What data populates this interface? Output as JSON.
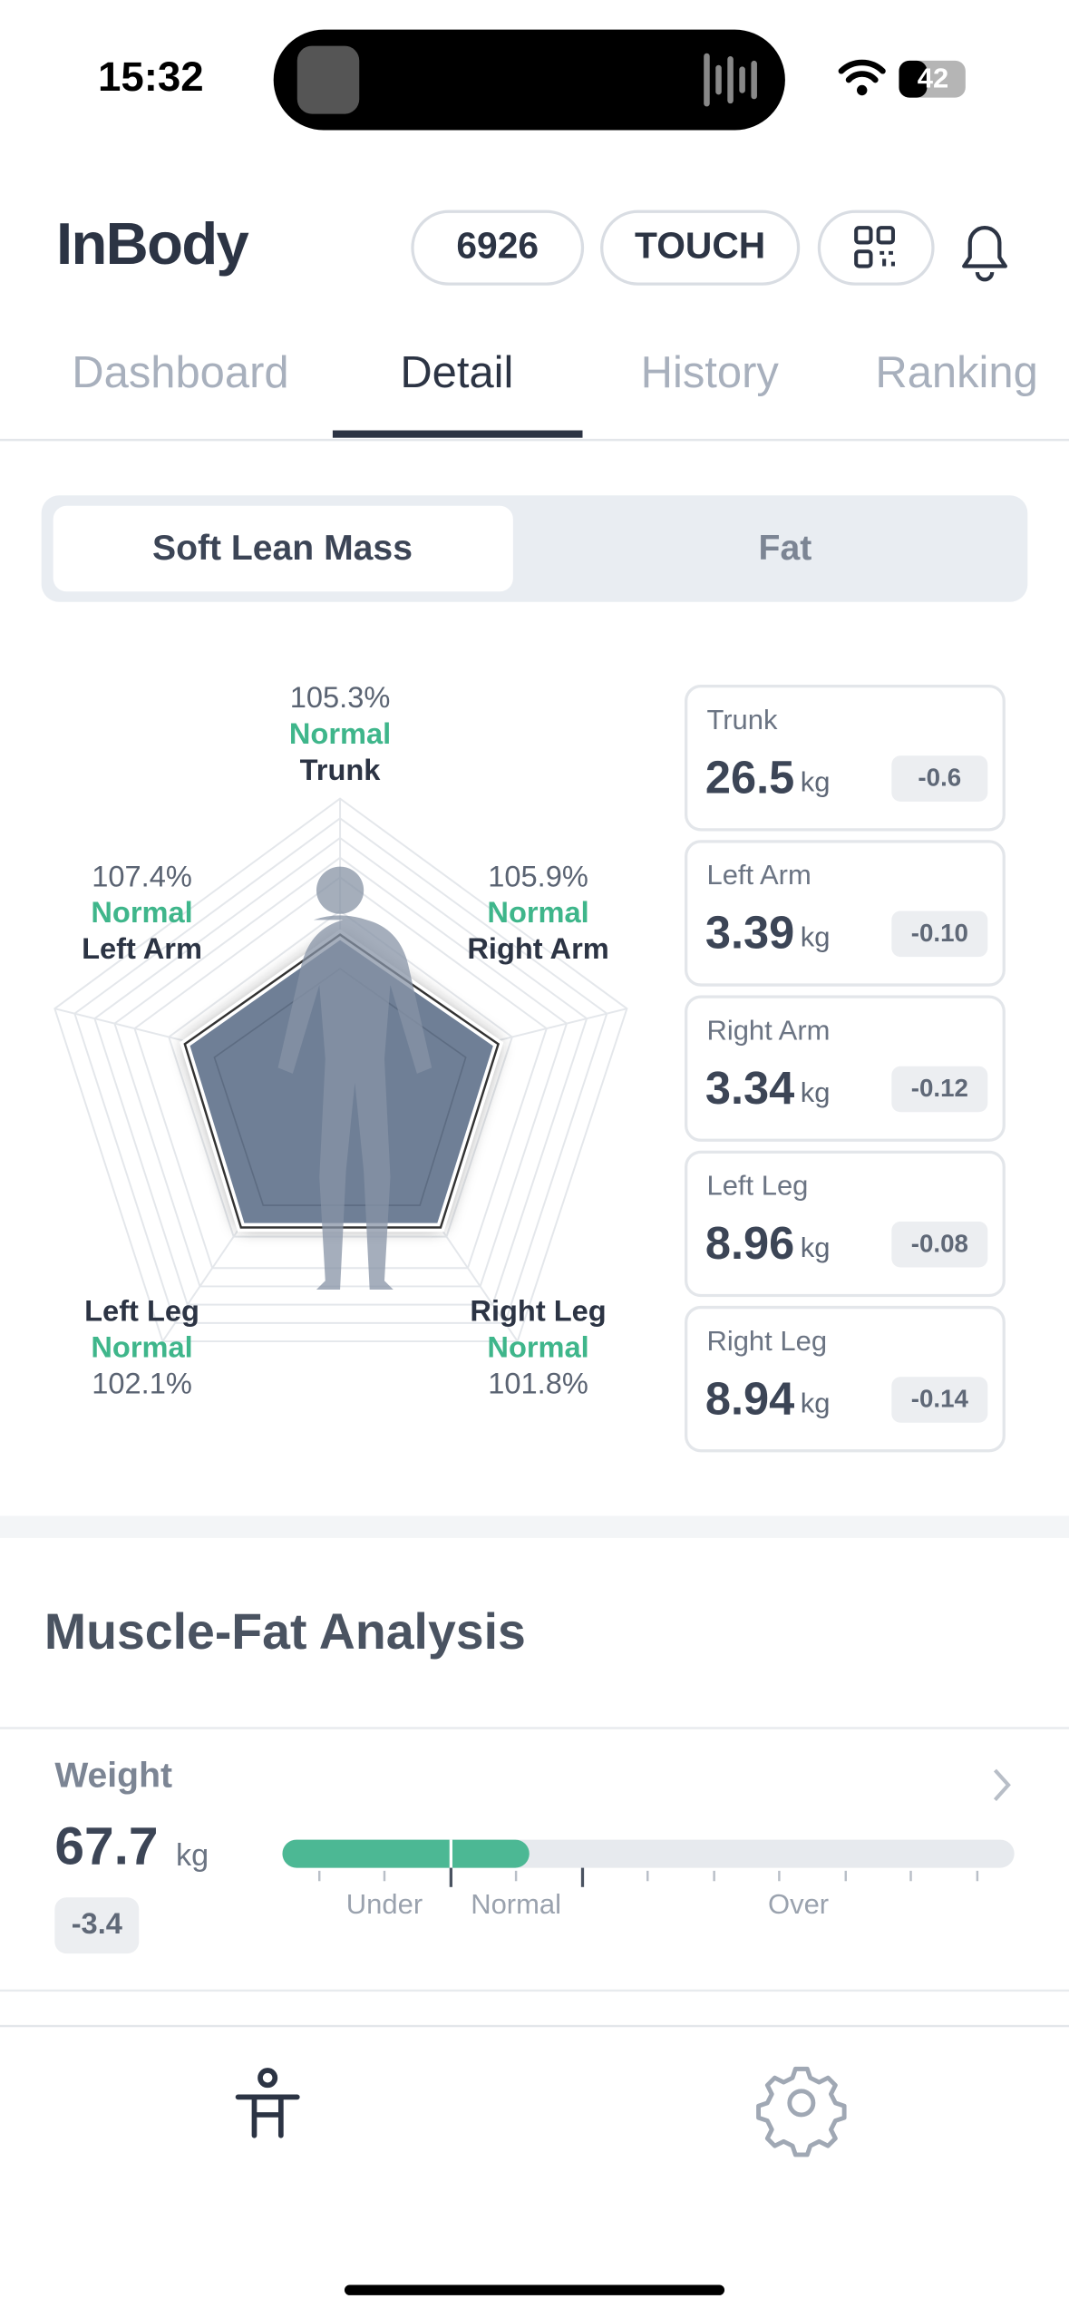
{
  "status_bar": {
    "time": "15:32",
    "battery": "42"
  },
  "header": {
    "logo": "InBody",
    "buttons": [
      "6926",
      "TOUCH"
    ]
  },
  "tabs": [
    "Dashboard",
    "Detail",
    "History",
    "Ranking"
  ],
  "segment": [
    "Soft Lean Mass",
    "Fat"
  ],
  "radar": [
    {
      "percent": "105.3%",
      "status": "Normal",
      "part": "Trunk"
    },
    {
      "percent": "107.4%",
      "status": "Normal",
      "part": "Left Arm"
    },
    {
      "percent": "105.9%",
      "status": "Normal",
      "part": "Right Arm"
    },
    {
      "percent": "102.1%",
      "status": "Normal",
      "part": "Left Leg"
    },
    {
      "percent": "101.8%",
      "status": "Normal",
      "part": "Right Leg"
    }
  ],
  "cards": [
    {
      "name": "Trunk",
      "value": "26.5",
      "unit": "kg",
      "change": "-0.6"
    },
    {
      "name": "Left Arm",
      "value": "3.39",
      "unit": "kg",
      "change": "-0.10"
    },
    {
      "name": "Right Arm",
      "value": "3.34",
      "unit": "kg",
      "change": "-0.12"
    },
    {
      "name": "Left Leg",
      "value": "8.96",
      "unit": "kg",
      "change": "-0.08"
    },
    {
      "name": "Right Leg",
      "value": "8.94",
      "unit": "kg",
      "change": "-0.14"
    }
  ],
  "section": {
    "title": "Muscle-Fat Analysis",
    "weight": {
      "label": "Weight",
      "value": "67.7",
      "unit": "kg",
      "change": "-3.4",
      "scale": [
        "Under",
        "Normal",
        "Over"
      ]
    }
  }
}
